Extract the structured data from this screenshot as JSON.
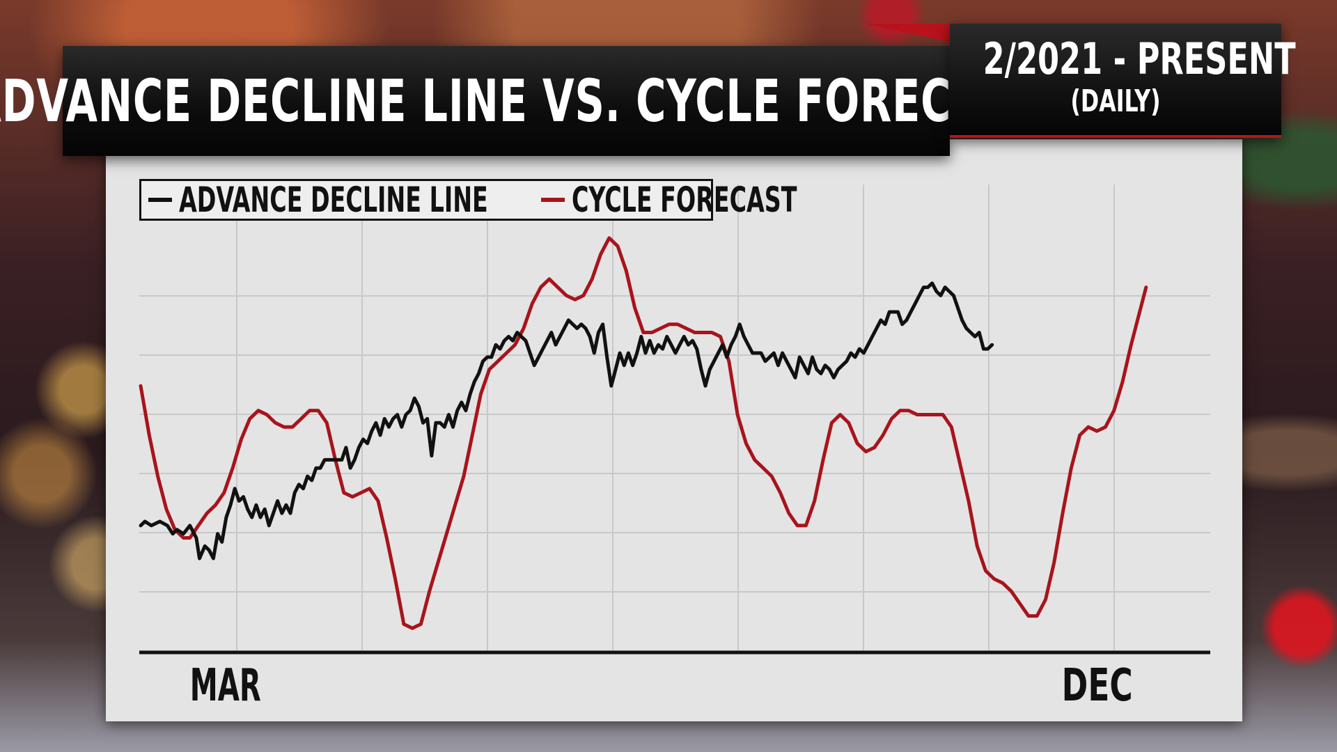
{
  "header": {
    "title": "ADVANCE DECLINE LINE VS. CYCLE FORECAST",
    "date_range": "2/2021 - PRESENT",
    "frequency": "(DAILY)"
  },
  "colors": {
    "advance_decline": "#111111",
    "cycle_forecast": "#a8141c",
    "panel_bg": "#e4e4e4",
    "grid": "#c8c8c8"
  },
  "chart_data": {
    "type": "line",
    "xlabel": "",
    "ylabel": "",
    "x_ticks": [
      "MAR",
      "DEC"
    ],
    "x_tick_positions": [
      0.05,
      0.865
    ],
    "xlim": [
      0,
      1
    ],
    "ylim": [
      0,
      100
    ],
    "grid": true,
    "legend_position": "top-left",
    "series": [
      {
        "name": "ADVANCE DECLINE LINE",
        "color": "#111111",
        "points": [
          [
            0.0,
            28
          ],
          [
            0.004,
            29
          ],
          [
            0.01,
            28
          ],
          [
            0.018,
            29
          ],
          [
            0.025,
            28
          ],
          [
            0.03,
            26
          ],
          [
            0.034,
            27
          ],
          [
            0.04,
            26
          ],
          [
            0.046,
            28
          ],
          [
            0.052,
            25
          ],
          [
            0.055,
            20
          ],
          [
            0.06,
            23
          ],
          [
            0.064,
            22
          ],
          [
            0.068,
            20
          ],
          [
            0.072,
            26
          ],
          [
            0.076,
            24
          ],
          [
            0.08,
            30
          ],
          [
            0.084,
            33
          ],
          [
            0.088,
            37
          ],
          [
            0.092,
            34
          ],
          [
            0.096,
            35
          ],
          [
            0.1,
            32
          ],
          [
            0.104,
            30
          ],
          [
            0.108,
            33
          ],
          [
            0.112,
            30
          ],
          [
            0.116,
            32
          ],
          [
            0.12,
            28
          ],
          [
            0.124,
            31
          ],
          [
            0.128,
            34
          ],
          [
            0.132,
            31
          ],
          [
            0.136,
            33
          ],
          [
            0.14,
            31
          ],
          [
            0.144,
            36
          ],
          [
            0.148,
            38
          ],
          [
            0.152,
            37
          ],
          [
            0.156,
            40
          ],
          [
            0.16,
            39
          ],
          [
            0.164,
            42
          ],
          [
            0.168,
            42
          ],
          [
            0.172,
            44
          ],
          [
            0.176,
            44
          ],
          [
            0.18,
            44
          ],
          [
            0.184,
            44
          ],
          [
            0.188,
            44
          ],
          [
            0.192,
            47
          ],
          [
            0.196,
            42
          ],
          [
            0.2,
            44
          ],
          [
            0.204,
            47
          ],
          [
            0.208,
            49
          ],
          [
            0.212,
            48
          ],
          [
            0.216,
            51
          ],
          [
            0.22,
            53
          ],
          [
            0.224,
            50
          ],
          [
            0.228,
            54
          ],
          [
            0.232,
            52
          ],
          [
            0.236,
            54
          ],
          [
            0.24,
            55
          ],
          [
            0.244,
            52
          ],
          [
            0.248,
            55
          ],
          [
            0.252,
            56
          ],
          [
            0.256,
            59
          ],
          [
            0.26,
            57
          ],
          [
            0.264,
            53
          ],
          [
            0.268,
            54
          ],
          [
            0.272,
            45
          ],
          [
            0.276,
            53
          ],
          [
            0.28,
            53
          ],
          [
            0.284,
            52
          ],
          [
            0.288,
            55
          ],
          [
            0.292,
            52
          ],
          [
            0.296,
            56
          ],
          [
            0.3,
            58
          ],
          [
            0.304,
            56
          ],
          [
            0.308,
            60
          ],
          [
            0.312,
            63
          ],
          [
            0.316,
            65
          ],
          [
            0.32,
            68
          ],
          [
            0.324,
            69
          ],
          [
            0.328,
            69
          ],
          [
            0.332,
            72
          ],
          [
            0.336,
            71
          ],
          [
            0.34,
            73
          ],
          [
            0.344,
            74
          ],
          [
            0.348,
            73
          ],
          [
            0.352,
            75
          ],
          [
            0.356,
            74
          ],
          [
            0.36,
            73
          ],
          [
            0.364,
            70
          ],
          [
            0.368,
            67
          ],
          [
            0.372,
            69
          ],
          [
            0.376,
            71
          ],
          [
            0.38,
            73
          ],
          [
            0.384,
            75
          ],
          [
            0.388,
            72
          ],
          [
            0.392,
            74
          ],
          [
            0.396,
            76
          ],
          [
            0.4,
            78
          ],
          [
            0.404,
            77
          ],
          [
            0.408,
            76
          ],
          [
            0.412,
            77
          ],
          [
            0.416,
            76
          ],
          [
            0.42,
            74
          ],
          [
            0.424,
            70
          ],
          [
            0.428,
            75
          ],
          [
            0.432,
            77
          ],
          [
            0.436,
            69
          ],
          [
            0.44,
            62
          ],
          [
            0.444,
            66
          ],
          [
            0.448,
            70
          ],
          [
            0.452,
            67
          ],
          [
            0.456,
            70
          ],
          [
            0.46,
            67
          ],
          [
            0.464,
            70
          ],
          [
            0.468,
            74
          ],
          [
            0.472,
            70
          ],
          [
            0.476,
            73
          ],
          [
            0.48,
            70
          ],
          [
            0.484,
            72
          ],
          [
            0.488,
            71
          ],
          [
            0.492,
            74
          ],
          [
            0.496,
            72
          ],
          [
            0.5,
            70
          ],
          [
            0.504,
            72
          ],
          [
            0.508,
            74
          ],
          [
            0.512,
            72
          ],
          [
            0.516,
            73
          ],
          [
            0.52,
            71
          ],
          [
            0.524,
            66
          ],
          [
            0.528,
            62
          ],
          [
            0.532,
            66
          ],
          [
            0.536,
            68
          ],
          [
            0.54,
            70
          ],
          [
            0.544,
            72
          ],
          [
            0.548,
            69
          ],
          [
            0.552,
            72
          ],
          [
            0.556,
            74
          ],
          [
            0.56,
            77
          ],
          [
            0.564,
            74
          ],
          [
            0.568,
            72
          ],
          [
            0.572,
            70
          ],
          [
            0.576,
            70
          ],
          [
            0.58,
            70
          ],
          [
            0.584,
            68
          ],
          [
            0.588,
            69
          ],
          [
            0.592,
            70
          ],
          [
            0.596,
            67
          ],
          [
            0.6,
            70
          ],
          [
            0.604,
            68
          ],
          [
            0.608,
            66
          ],
          [
            0.612,
            64
          ],
          [
            0.616,
            69
          ],
          [
            0.62,
            67
          ],
          [
            0.624,
            65
          ],
          [
            0.628,
            69
          ],
          [
            0.632,
            66
          ],
          [
            0.636,
            65
          ],
          [
            0.64,
            67
          ],
          [
            0.644,
            66
          ],
          [
            0.648,
            64
          ],
          [
            0.652,
            66
          ],
          [
            0.656,
            67
          ],
          [
            0.66,
            68
          ],
          [
            0.664,
            70
          ],
          [
            0.668,
            69
          ],
          [
            0.672,
            71
          ],
          [
            0.676,
            70
          ],
          [
            0.68,
            72
          ],
          [
            0.684,
            74
          ],
          [
            0.688,
            76
          ],
          [
            0.692,
            78
          ],
          [
            0.696,
            77
          ],
          [
            0.7,
            80
          ],
          [
            0.704,
            80
          ],
          [
            0.708,
            80
          ],
          [
            0.712,
            77
          ],
          [
            0.716,
            78
          ],
          [
            0.72,
            80
          ],
          [
            0.724,
            82
          ],
          [
            0.728,
            84
          ],
          [
            0.732,
            86
          ],
          [
            0.736,
            86
          ],
          [
            0.74,
            87
          ],
          [
            0.744,
            85
          ],
          [
            0.748,
            84
          ],
          [
            0.752,
            86
          ],
          [
            0.756,
            85
          ],
          [
            0.76,
            84
          ],
          [
            0.764,
            81
          ],
          [
            0.768,
            78
          ],
          [
            0.772,
            76
          ],
          [
            0.776,
            75
          ],
          [
            0.78,
            74
          ],
          [
            0.784,
            75
          ],
          [
            0.788,
            71
          ],
          [
            0.792,
            71
          ],
          [
            0.796,
            72
          ]
        ]
      },
      {
        "name": "CYCLE FORECAST",
        "color": "#a8141c",
        "points": [
          [
            0.0,
            62
          ],
          [
            0.008,
            50
          ],
          [
            0.016,
            40
          ],
          [
            0.024,
            32
          ],
          [
            0.032,
            27
          ],
          [
            0.04,
            25
          ],
          [
            0.046,
            25
          ],
          [
            0.054,
            28
          ],
          [
            0.062,
            31
          ],
          [
            0.07,
            33
          ],
          [
            0.078,
            36
          ],
          [
            0.086,
            42
          ],
          [
            0.094,
            49
          ],
          [
            0.102,
            54
          ],
          [
            0.11,
            56
          ],
          [
            0.118,
            55
          ],
          [
            0.126,
            53
          ],
          [
            0.134,
            52
          ],
          [
            0.142,
            52
          ],
          [
            0.15,
            54
          ],
          [
            0.158,
            56
          ],
          [
            0.166,
            56
          ],
          [
            0.174,
            53
          ],
          [
            0.182,
            44
          ],
          [
            0.19,
            36
          ],
          [
            0.198,
            35
          ],
          [
            0.206,
            36
          ],
          [
            0.214,
            37
          ],
          [
            0.222,
            34
          ],
          [
            0.23,
            25
          ],
          [
            0.238,
            15
          ],
          [
            0.246,
            4
          ],
          [
            0.254,
            3
          ],
          [
            0.262,
            4
          ],
          [
            0.27,
            12
          ],
          [
            0.278,
            19
          ],
          [
            0.286,
            26
          ],
          [
            0.294,
            33
          ],
          [
            0.302,
            40
          ],
          [
            0.31,
            50
          ],
          [
            0.318,
            60
          ],
          [
            0.326,
            66
          ],
          [
            0.334,
            68
          ],
          [
            0.342,
            70
          ],
          [
            0.35,
            72
          ],
          [
            0.358,
            76
          ],
          [
            0.366,
            82
          ],
          [
            0.374,
            86
          ],
          [
            0.382,
            88
          ],
          [
            0.39,
            86
          ],
          [
            0.398,
            84
          ],
          [
            0.406,
            83
          ],
          [
            0.414,
            84
          ],
          [
            0.422,
            88
          ],
          [
            0.43,
            94
          ],
          [
            0.438,
            98
          ],
          [
            0.446,
            96
          ],
          [
            0.454,
            90
          ],
          [
            0.462,
            81
          ],
          [
            0.47,
            75
          ],
          [
            0.478,
            75
          ],
          [
            0.486,
            76
          ],
          [
            0.494,
            77
          ],
          [
            0.502,
            77
          ],
          [
            0.51,
            76
          ],
          [
            0.518,
            75
          ],
          [
            0.526,
            75
          ],
          [
            0.534,
            75
          ],
          [
            0.542,
            74
          ],
          [
            0.55,
            68
          ],
          [
            0.558,
            55
          ],
          [
            0.566,
            48
          ],
          [
            0.574,
            44
          ],
          [
            0.582,
            42
          ],
          [
            0.59,
            40
          ],
          [
            0.598,
            36
          ],
          [
            0.606,
            31
          ],
          [
            0.614,
            28
          ],
          [
            0.622,
            28
          ],
          [
            0.63,
            34
          ],
          [
            0.638,
            44
          ],
          [
            0.646,
            53
          ],
          [
            0.654,
            55
          ],
          [
            0.662,
            53
          ],
          [
            0.67,
            48
          ],
          [
            0.678,
            46
          ],
          [
            0.686,
            47
          ],
          [
            0.694,
            50
          ],
          [
            0.702,
            54
          ],
          [
            0.71,
            56
          ],
          [
            0.718,
            56
          ],
          [
            0.726,
            55
          ],
          [
            0.734,
            55
          ],
          [
            0.742,
            55
          ],
          [
            0.75,
            55
          ],
          [
            0.758,
            52
          ],
          [
            0.766,
            43
          ],
          [
            0.774,
            34
          ],
          [
            0.782,
            23
          ],
          [
            0.79,
            17
          ],
          [
            0.798,
            15
          ],
          [
            0.806,
            14
          ],
          [
            0.814,
            12
          ],
          [
            0.822,
            9
          ],
          [
            0.83,
            6
          ],
          [
            0.838,
            6
          ],
          [
            0.846,
            10
          ],
          [
            0.854,
            19
          ],
          [
            0.862,
            31
          ],
          [
            0.87,
            42
          ],
          [
            0.878,
            50
          ],
          [
            0.886,
            52
          ],
          [
            0.894,
            51
          ],
          [
            0.902,
            52
          ],
          [
            0.91,
            56
          ],
          [
            0.918,
            63
          ],
          [
            0.926,
            72
          ],
          [
            0.934,
            80
          ],
          [
            0.94,
            86
          ]
        ]
      }
    ]
  }
}
